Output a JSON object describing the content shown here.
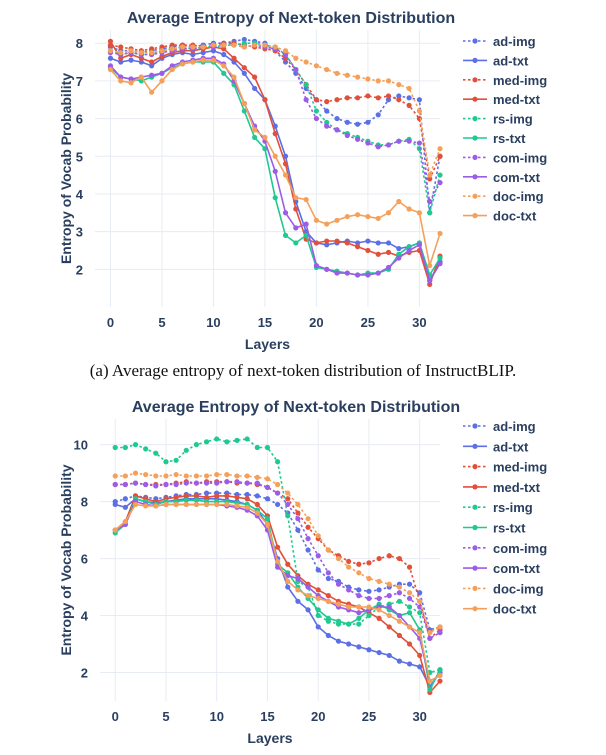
{
  "colors": {
    "ad": "#5b6fe6",
    "med": "#e0503a",
    "rs": "#1fc990",
    "com": "#9b5ce8",
    "doc": "#f5a05a",
    "axis_text": "#2a3f5f",
    "grid": "#e7ecf3"
  },
  "chart_data": [
    {
      "type": "line",
      "title": "Average Entropy of Next-token Distribution",
      "xlabel": "Layers",
      "ylabel": "Entropy of Vocab Probability",
      "xlim": [
        -1.5,
        32
      ],
      "ylim": [
        1.0,
        8.35
      ],
      "xticks": [
        0,
        5,
        10,
        15,
        20,
        25,
        30
      ],
      "yticks": [
        2,
        3,
        4,
        5,
        6,
        7,
        8
      ],
      "caption": "(a) Average entropy of next-token distribution of InstructBLIP.",
      "legend": [
        "ad-img",
        "ad-txt",
        "med-img",
        "med-txt",
        "rs-img",
        "rs-txt",
        "com-img",
        "com-txt",
        "doc-img",
        "doc-txt"
      ],
      "series": [
        {
          "name": "ad-img",
          "color_key": "ad",
          "dash": true,
          "values": [
            7.9,
            7.8,
            7.8,
            7.75,
            7.8,
            7.85,
            7.9,
            7.95,
            7.9,
            7.95,
            8.0,
            8.0,
            8.05,
            8.1,
            8.05,
            8.0,
            7.8,
            7.5,
            7.2,
            6.8,
            6.5,
            6.2,
            6.0,
            5.9,
            5.85,
            5.9,
            6.1,
            6.5,
            6.6,
            6.55,
            6.5,
            3.5,
            5.0
          ]
        },
        {
          "name": "ad-txt",
          "color_key": "ad",
          "dash": false,
          "values": [
            7.6,
            7.5,
            7.55,
            7.5,
            7.4,
            7.6,
            7.7,
            7.75,
            7.7,
            7.75,
            7.8,
            7.7,
            7.5,
            7.2,
            6.8,
            6.5,
            5.8,
            5.0,
            3.8,
            3.0,
            2.7,
            2.65,
            2.7,
            2.75,
            2.7,
            2.75,
            2.7,
            2.7,
            2.55,
            2.6,
            2.7,
            1.7,
            2.2
          ]
        },
        {
          "name": "med-img",
          "color_key": "med",
          "dash": true,
          "values": [
            7.95,
            7.9,
            7.85,
            7.8,
            7.85,
            7.9,
            7.95,
            7.95,
            7.95,
            7.9,
            7.95,
            8.0,
            8.0,
            7.95,
            7.9,
            7.85,
            7.8,
            7.6,
            7.3,
            6.9,
            6.5,
            6.45,
            6.5,
            6.55,
            6.55,
            6.6,
            6.55,
            6.6,
            6.5,
            6.35,
            6.0,
            4.4,
            5.0
          ]
        },
        {
          "name": "med-txt",
          "color_key": "med",
          "dash": false,
          "values": [
            8.05,
            7.6,
            7.7,
            7.6,
            7.5,
            7.65,
            7.75,
            7.8,
            7.8,
            7.85,
            7.9,
            7.85,
            7.6,
            7.35,
            7.1,
            6.5,
            5.6,
            4.8,
            3.6,
            2.8,
            2.7,
            2.75,
            2.75,
            2.7,
            2.6,
            2.5,
            2.4,
            2.45,
            2.35,
            2.45,
            2.5,
            1.6,
            2.35
          ]
        },
        {
          "name": "rs-img",
          "color_key": "rs",
          "dash": true,
          "values": [
            7.8,
            7.7,
            7.75,
            7.7,
            7.7,
            7.8,
            7.85,
            7.9,
            7.85,
            7.9,
            7.9,
            7.95,
            7.95,
            8.0,
            8.0,
            7.95,
            7.9,
            7.7,
            7.3,
            6.9,
            6.2,
            5.9,
            5.7,
            5.6,
            5.5,
            5.4,
            5.3,
            5.3,
            5.4,
            5.45,
            5.2,
            3.5,
            4.5
          ]
        },
        {
          "name": "rs-txt",
          "color_key": "rs",
          "dash": false,
          "values": [
            7.35,
            7.1,
            7.05,
            7.0,
            7.1,
            7.2,
            7.35,
            7.45,
            7.5,
            7.5,
            7.5,
            7.2,
            6.9,
            6.2,
            5.5,
            5.2,
            3.9,
            2.9,
            2.7,
            2.9,
            2.05,
            2.0,
            1.95,
            1.9,
            1.85,
            1.9,
            1.9,
            2.0,
            2.4,
            2.6,
            2.7,
            1.85,
            2.3
          ]
        },
        {
          "name": "com-img",
          "color_key": "com",
          "dash": true,
          "values": [
            7.75,
            7.7,
            7.75,
            7.7,
            7.7,
            7.75,
            7.8,
            7.85,
            7.85,
            7.9,
            7.9,
            7.95,
            7.95,
            7.9,
            7.95,
            7.9,
            7.85,
            7.7,
            7.3,
            6.5,
            6.0,
            5.8,
            5.7,
            5.55,
            5.45,
            5.35,
            5.25,
            5.3,
            5.4,
            5.4,
            5.35,
            3.8,
            4.3
          ]
        },
        {
          "name": "com-txt",
          "color_key": "com",
          "dash": false,
          "values": [
            7.4,
            7.1,
            7.05,
            7.1,
            7.15,
            7.2,
            7.4,
            7.5,
            7.55,
            7.6,
            7.6,
            7.45,
            7.0,
            6.4,
            5.8,
            5.4,
            4.6,
            3.5,
            3.1,
            3.2,
            2.1,
            2.0,
            1.9,
            1.9,
            1.85,
            1.85,
            1.9,
            2.05,
            2.3,
            2.5,
            2.65,
            1.7,
            2.15
          ]
        },
        {
          "name": "doc-img",
          "color_key": "doc",
          "dash": true,
          "values": [
            7.8,
            7.75,
            7.8,
            7.75,
            7.75,
            7.8,
            7.85,
            7.9,
            7.9,
            7.9,
            7.95,
            7.95,
            7.95,
            7.9,
            7.95,
            7.95,
            7.9,
            7.8,
            7.6,
            7.5,
            7.4,
            7.3,
            7.2,
            7.15,
            7.1,
            7.05,
            7.0,
            7.0,
            6.9,
            6.8,
            6.2,
            4.5,
            5.2
          ]
        },
        {
          "name": "doc-txt",
          "color_key": "doc",
          "dash": false,
          "values": [
            7.3,
            7.0,
            6.95,
            7.1,
            6.7,
            7.0,
            7.3,
            7.45,
            7.5,
            7.55,
            7.55,
            7.4,
            7.1,
            6.4,
            5.7,
            5.5,
            5.0,
            4.5,
            3.9,
            3.85,
            3.3,
            3.2,
            3.3,
            3.4,
            3.45,
            3.4,
            3.35,
            3.5,
            3.8,
            3.6,
            3.5,
            2.1,
            2.95
          ]
        }
      ]
    },
    {
      "type": "line",
      "title": "Average Entropy of Next-token Distribution",
      "xlabel": "Layers",
      "ylabel": "Entropy of Vocab Probability",
      "xlim": [
        -1.5,
        32
      ],
      "ylim": [
        1.0,
        10.9
      ],
      "xticks": [
        0,
        5,
        10,
        15,
        20,
        25,
        30
      ],
      "yticks": [
        2,
        4,
        6,
        8,
        10
      ],
      "caption": "",
      "legend": [
        "ad-img",
        "ad-txt",
        "med-img",
        "med-txt",
        "rs-img",
        "rs-txt",
        "com-img",
        "com-txt",
        "doc-img",
        "doc-txt"
      ],
      "series": [
        {
          "name": "ad-img",
          "color_key": "ad",
          "dash": true,
          "values": [
            8.0,
            8.1,
            8.2,
            8.15,
            8.1,
            8.15,
            8.2,
            8.25,
            8.25,
            8.3,
            8.3,
            8.3,
            8.25,
            8.25,
            8.2,
            8.1,
            7.9,
            7.6,
            7.0,
            6.3,
            5.6,
            5.3,
            5.2,
            5.0,
            4.9,
            4.85,
            4.9,
            5.0,
            5.1,
            5.1,
            4.8,
            3.5,
            3.6
          ]
        },
        {
          "name": "ad-txt",
          "color_key": "ad",
          "dash": false,
          "values": [
            7.9,
            7.8,
            8.1,
            8.0,
            7.95,
            8.0,
            8.05,
            8.1,
            8.1,
            8.1,
            8.1,
            8.05,
            8.0,
            7.9,
            7.7,
            7.2,
            6.0,
            5.0,
            4.5,
            4.2,
            3.6,
            3.3,
            3.1,
            3.0,
            2.9,
            2.8,
            2.7,
            2.6,
            2.4,
            2.3,
            2.2,
            1.5,
            2.0
          ]
        },
        {
          "name": "med-img",
          "color_key": "med",
          "dash": true,
          "values": [
            8.6,
            8.6,
            8.65,
            8.6,
            8.6,
            8.6,
            8.65,
            8.7,
            8.65,
            8.7,
            8.7,
            8.7,
            8.65,
            8.65,
            8.6,
            8.5,
            8.3,
            8.1,
            7.6,
            7.1,
            6.7,
            6.3,
            6.1,
            5.9,
            5.8,
            5.85,
            6.0,
            6.1,
            6.0,
            5.7,
            4.5,
            3.2,
            3.5
          ]
        },
        {
          "name": "med-txt",
          "color_key": "med",
          "dash": false,
          "values": [
            7.0,
            7.3,
            8.2,
            8.1,
            8.0,
            8.1,
            8.15,
            8.2,
            8.2,
            8.15,
            8.2,
            8.2,
            8.15,
            8.1,
            7.9,
            7.5,
            6.4,
            5.8,
            5.4,
            5.1,
            4.9,
            4.7,
            4.5,
            4.4,
            4.3,
            4.1,
            3.9,
            3.6,
            3.3,
            3.0,
            2.6,
            1.3,
            1.7
          ]
        },
        {
          "name": "rs-img",
          "color_key": "rs",
          "dash": true,
          "values": [
            9.9,
            9.9,
            10.0,
            9.85,
            9.7,
            9.4,
            9.45,
            9.8,
            10.0,
            10.1,
            10.2,
            10.1,
            10.15,
            10.2,
            9.9,
            9.9,
            9.4,
            7.5,
            5.2,
            5.0,
            4.0,
            3.8,
            3.7,
            3.7,
            3.7,
            4.0,
            4.3,
            4.4,
            4.5,
            4.3,
            4.1,
            2.0,
            2.1
          ]
        },
        {
          "name": "rs-txt",
          "color_key": "rs",
          "dash": false,
          "values": [
            6.9,
            7.2,
            8.1,
            8.0,
            7.9,
            8.0,
            8.0,
            8.05,
            8.05,
            8.0,
            8.0,
            8.0,
            7.95,
            7.9,
            7.7,
            7.4,
            5.8,
            5.5,
            5.0,
            4.6,
            4.2,
            3.9,
            3.8,
            3.7,
            3.9,
            4.2,
            4.4,
            4.2,
            4.0,
            4.1,
            3.5,
            1.4,
            2.1
          ]
        },
        {
          "name": "com-img",
          "color_key": "com",
          "dash": true,
          "values": [
            8.6,
            8.6,
            8.65,
            8.6,
            8.55,
            8.6,
            8.6,
            8.65,
            8.65,
            8.65,
            8.65,
            8.7,
            8.7,
            8.65,
            8.65,
            8.5,
            8.3,
            7.9,
            7.4,
            6.7,
            6.1,
            5.5,
            5.1,
            4.9,
            4.7,
            4.6,
            4.6,
            4.7,
            4.8,
            4.6,
            4.3,
            3.2,
            3.4
          ]
        },
        {
          "name": "com-txt",
          "color_key": "com",
          "dash": false,
          "values": [
            7.0,
            7.2,
            8.0,
            7.9,
            7.85,
            7.9,
            7.9,
            7.9,
            7.9,
            7.9,
            7.9,
            7.85,
            7.8,
            7.7,
            7.5,
            7.0,
            5.7,
            5.4,
            5.3,
            5.0,
            4.7,
            4.5,
            4.3,
            4.2,
            4.1,
            4.2,
            4.3,
            4.3,
            4.0,
            3.6,
            3.2,
            1.7,
            1.9
          ]
        },
        {
          "name": "doc-img",
          "color_key": "doc",
          "dash": true,
          "values": [
            8.9,
            8.9,
            9.0,
            8.95,
            8.9,
            8.9,
            8.95,
            8.9,
            8.9,
            8.9,
            8.95,
            8.95,
            8.9,
            8.9,
            8.85,
            8.8,
            8.6,
            8.3,
            7.9,
            7.4,
            6.8,
            6.3,
            6.0,
            5.7,
            5.5,
            5.3,
            5.2,
            5.1,
            5.0,
            4.8,
            4.5,
            3.4,
            3.6
          ]
        },
        {
          "name": "doc-txt",
          "color_key": "doc",
          "dash": false,
          "values": [
            7.0,
            7.3,
            7.9,
            7.85,
            7.85,
            7.9,
            7.9,
            7.9,
            7.9,
            7.9,
            7.9,
            7.9,
            7.85,
            7.8,
            7.6,
            7.2,
            5.9,
            5.2,
            4.9,
            4.7,
            4.6,
            4.5,
            4.4,
            4.3,
            4.3,
            4.3,
            4.2,
            4.0,
            3.8,
            3.6,
            3.4,
            1.7,
            1.9
          ]
        }
      ]
    }
  ]
}
